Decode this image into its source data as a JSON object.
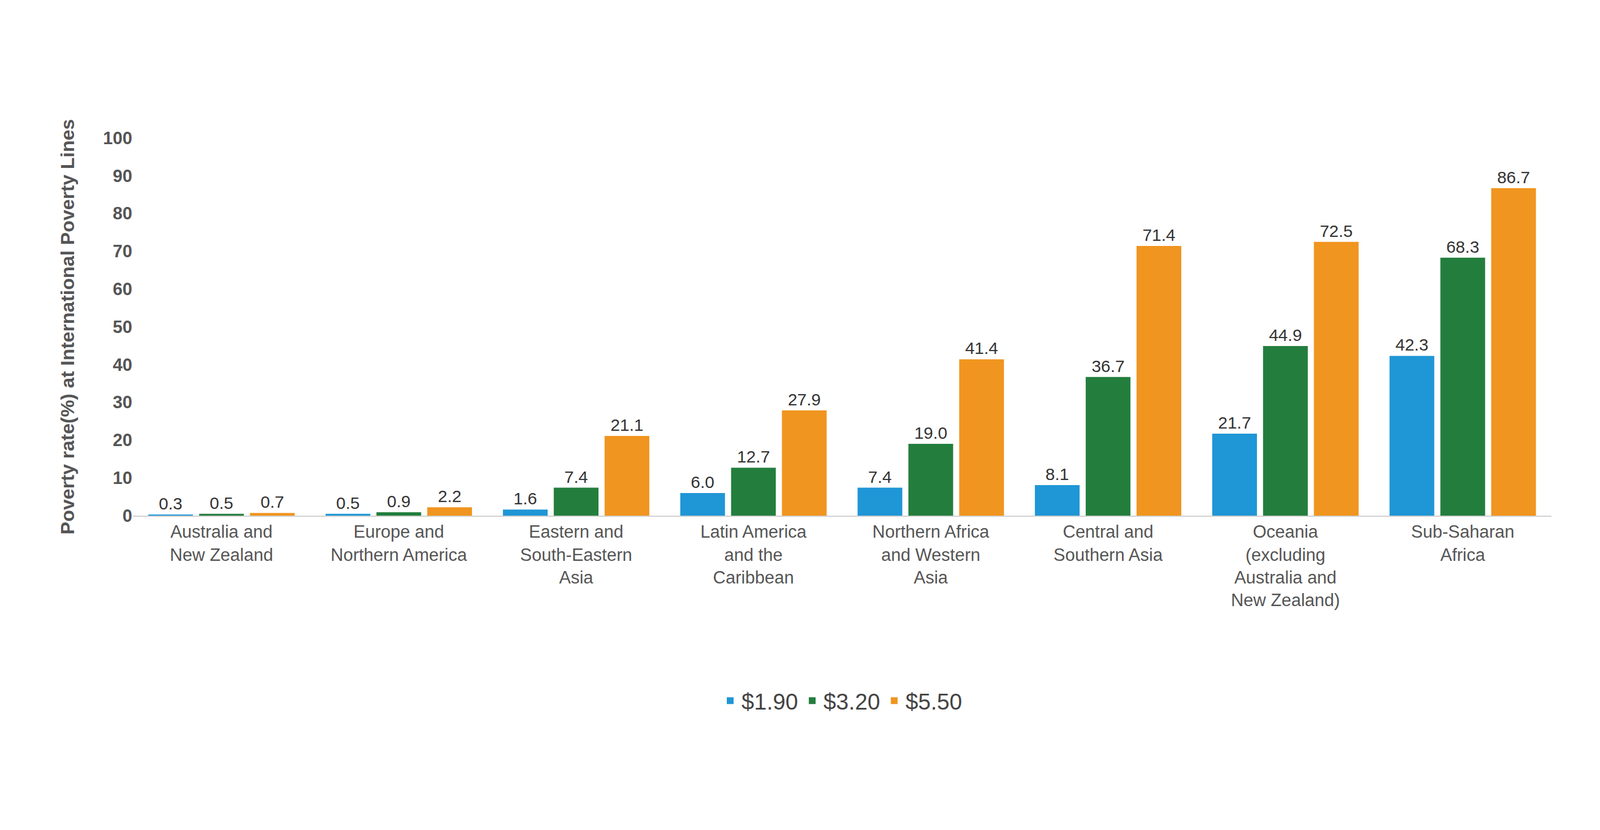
{
  "chart_data": {
    "type": "bar",
    "y_label": "Poverty rate(%) at International Poverty Lines",
    "categories": [
      "Australia and\nNew Zealand",
      "Europe and\nNorthern America",
      "Eastern and\nSouth-Eastern\nAsia",
      "Latin America\nand the\nCaribbean",
      "Northern Africa\nand Western\nAsia",
      "Central and\nSouthern Asia",
      "Oceania\n(excluding\nAustralia and\nNew Zealand)",
      "Sub-Saharan\nAfrica"
    ],
    "series": [
      {
        "name": "$1.90",
        "color": "#1f96d6",
        "values": [
          0.3,
          0.5,
          1.6,
          6.0,
          7.4,
          8.1,
          21.7,
          42.3
        ],
        "value_labels": [
          "0.3",
          "0.5",
          "1.6",
          "6.0",
          "7.4",
          "8.1",
          "21.7",
          "42.3"
        ]
      },
      {
        "name": "$3.20",
        "color": "#237e3e",
        "values": [
          0.5,
          0.9,
          7.4,
          12.7,
          19.0,
          36.7,
          44.9,
          68.3
        ],
        "value_labels": [
          "0.5",
          "0.9",
          "7.4",
          "12.7",
          "19.0",
          "36.7",
          "44.9",
          "68.3"
        ]
      },
      {
        "name": "$5.50",
        "color": "#f0951f",
        "values": [
          0.7,
          2.2,
          21.1,
          27.9,
          41.4,
          71.4,
          72.5,
          86.7
        ],
        "value_labels": [
          "0.7",
          "2.2",
          "21.1",
          "27.9",
          "41.4",
          "71.4",
          "72.5",
          "86.7"
        ]
      }
    ],
    "ylim": [
      0,
      100
    ],
    "yticks": [
      0,
      10,
      20,
      30,
      40,
      50,
      60,
      70,
      80,
      90,
      100
    ],
    "grid": false,
    "legend": "bottom",
    "data_labels": true
  }
}
